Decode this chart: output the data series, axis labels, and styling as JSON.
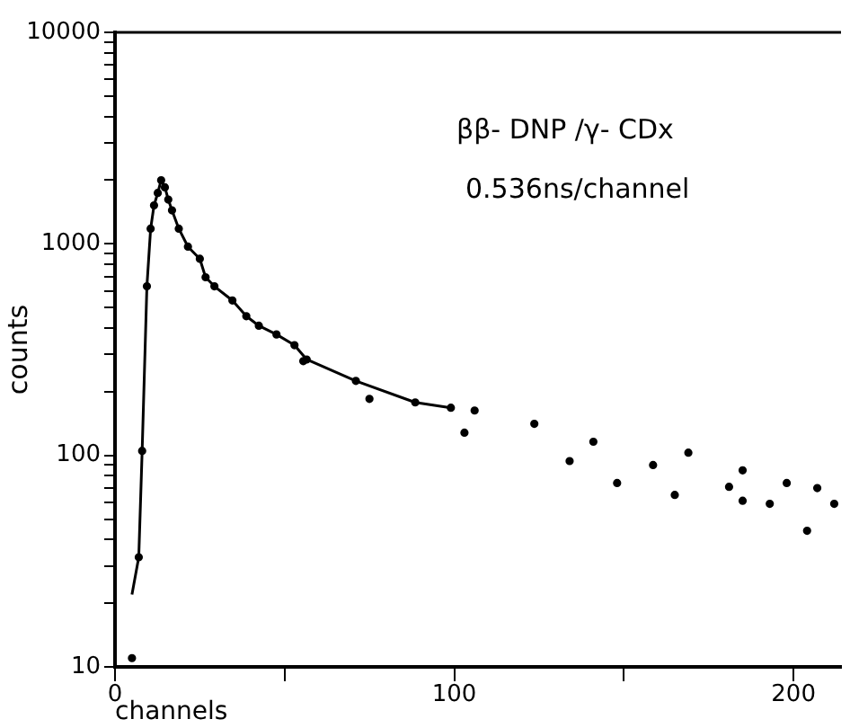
{
  "chart_data": {
    "type": "scatter",
    "xlabel": "channels",
    "ylabel": "counts",
    "log": "y",
    "grid": false,
    "legend": false,
    "marker": "circle",
    "xlim": [
      0,
      214
    ],
    "xticks": [
      0,
      {
        "value": 50,
        "label": null
      },
      100,
      {
        "value": 150,
        "label": null
      },
      200
    ],
    "ylim": [
      10,
      10000
    ],
    "yticks": [
      10,
      {
        "value": 20,
        "label": null
      },
      {
        "value": 30,
        "label": null
      },
      {
        "value": 40,
        "label": null
      },
      {
        "value": 50,
        "label": null
      },
      {
        "value": 60,
        "label": null
      },
      {
        "value": 70,
        "label": null
      },
      {
        "value": 80,
        "label": null
      },
      {
        "value": 90,
        "label": null
      },
      100,
      {
        "value": 200,
        "label": null
      },
      {
        "value": 300,
        "label": null
      },
      {
        "value": 400,
        "label": null
      },
      {
        "value": 500,
        "label": null
      },
      {
        "value": 600,
        "label": null
      },
      {
        "value": 700,
        "label": null
      },
      {
        "value": 800,
        "label": null
      },
      {
        "value": 900,
        "label": null
      },
      1000,
      {
        "value": 2000,
        "label": null
      },
      {
        "value": 3000,
        "label": null
      },
      {
        "value": 4000,
        "label": null
      },
      {
        "value": 5000,
        "label": null
      },
      {
        "value": 6000,
        "label": null
      },
      {
        "value": 7000,
        "label": null
      },
      {
        "value": 8000,
        "label": null
      },
      {
        "value": 9000,
        "label": null
      },
      10000
    ],
    "annotations": [
      "ββ- DNP /γ- CDx",
      "0.536ns/channel"
    ],
    "series": [
      {
        "color": "#000000",
        "x": [
          5,
          7,
          8,
          9.4,
          10.5,
          11.5,
          12.6,
          13.6,
          14.7,
          15.7,
          16.8,
          18.8,
          21.5,
          25,
          26.7,
          29.3,
          34.6,
          38.7,
          42.4,
          47.6,
          52.9,
          55.5,
          56.5,
          71,
          75,
          88.5,
          99,
          103,
          106,
          123.6,
          134,
          141,
          148,
          158.6,
          165,
          169,
          181,
          185,
          185,
          193,
          198,
          204,
          207,
          212
        ],
        "values": [
          11,
          33,
          105,
          630,
          1180,
          1520,
          1740,
          2000,
          1850,
          1620,
          1440,
          1180,
          970,
          850,
          695,
          630,
          540,
          455,
          410,
          373,
          332,
          279,
          284,
          225,
          185,
          178,
          168,
          128,
          163,
          141,
          94,
          116,
          74,
          90,
          65,
          103,
          71,
          85,
          61,
          59,
          74,
          44,
          70,
          59
        ]
      },
      {
        "type": "line",
        "color": "#000000",
        "marker": "none",
        "x": [
          5,
          7,
          8,
          9.4,
          10.5,
          11.5,
          12.6,
          13.6,
          14.7,
          15.7,
          16.8,
          18.8,
          21.5,
          25,
          26.7,
          29.3,
          34.6,
          38.7,
          42.4,
          47.6,
          52.9,
          56.5,
          71,
          88.5,
          99
        ],
        "values": [
          22,
          33,
          105,
          630,
          1180,
          1520,
          1740,
          2000,
          1850,
          1620,
          1440,
          1180,
          970,
          850,
          695,
          630,
          540,
          455,
          410,
          373,
          332,
          284,
          225,
          178,
          168
        ]
      }
    ]
  }
}
